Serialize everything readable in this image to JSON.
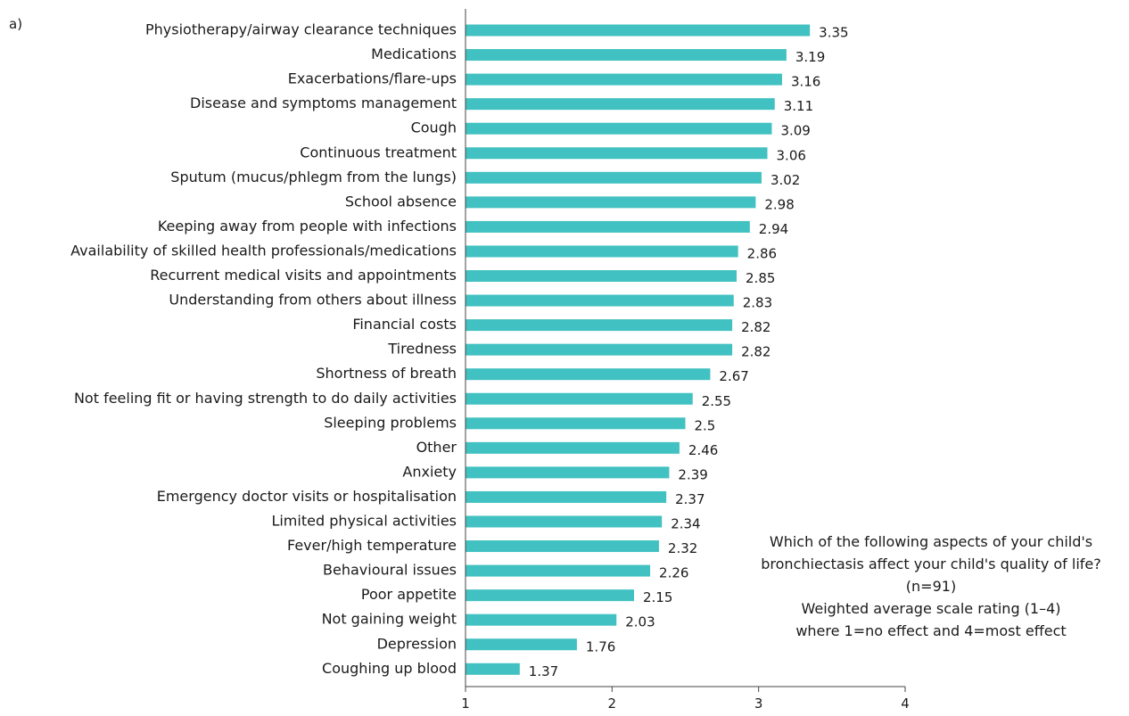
{
  "panel_label": "a)",
  "annotation": {
    "question_line1": "Which of the following aspects of your child's",
    "question_line2": "bronchiectasis affect your child's quality of life?",
    "sample": "(n=91)",
    "scale_line1": "Weighted average scale rating (1–4)",
    "scale_line2": "where 1=no effect and 4=most effect"
  },
  "chart_data": {
    "type": "bar",
    "orientation": "horizontal",
    "bar_color": "#41c1c1",
    "xlim": [
      1,
      4
    ],
    "xticks": [
      "1",
      "2",
      "3",
      "4"
    ],
    "categories": [
      "Physiotherapy/airway clearance techniques",
      "Medications",
      "Exacerbations/flare-ups",
      "Disease and symptoms management",
      "Cough",
      "Continuous treatment",
      "Sputum (mucus/phlegm from the lungs)",
      "School absence",
      "Keeping away from people with infections",
      "Availability of skilled health professionals/medications",
      "Recurrent medical visits and appointments",
      "Understanding from others about illness",
      "Financial costs",
      "Tiredness",
      "Shortness of breath",
      "Not feeling fit or having strength to do daily activities",
      "Sleeping problems",
      "Other",
      "Anxiety",
      "Emergency doctor visits or hospitalisation",
      "Limited physical activities",
      "Fever/high temperature",
      "Behavioural issues",
      "Poor appetite",
      "Not gaining weight",
      "Depression",
      "Coughing up blood"
    ],
    "values": [
      3.35,
      3.19,
      3.16,
      3.11,
      3.09,
      3.06,
      3.02,
      2.98,
      2.94,
      2.86,
      2.85,
      2.83,
      2.82,
      2.82,
      2.67,
      2.55,
      2.5,
      2.46,
      2.39,
      2.37,
      2.34,
      2.32,
      2.26,
      2.15,
      2.03,
      1.76,
      1.37
    ],
    "value_labels": [
      "3.35",
      "3.19",
      "3.16",
      "3.11",
      "3.09",
      "3.06",
      "3.02",
      "2.98",
      "2.94",
      "2.86",
      "2.85",
      "2.83",
      "2.82",
      "2.82",
      "2.67",
      "2.55",
      "2.5",
      "2.46",
      "2.39",
      "2.37",
      "2.34",
      "2.32",
      "2.26",
      "2.15",
      "2.03",
      "1.76",
      "1.37"
    ]
  }
}
